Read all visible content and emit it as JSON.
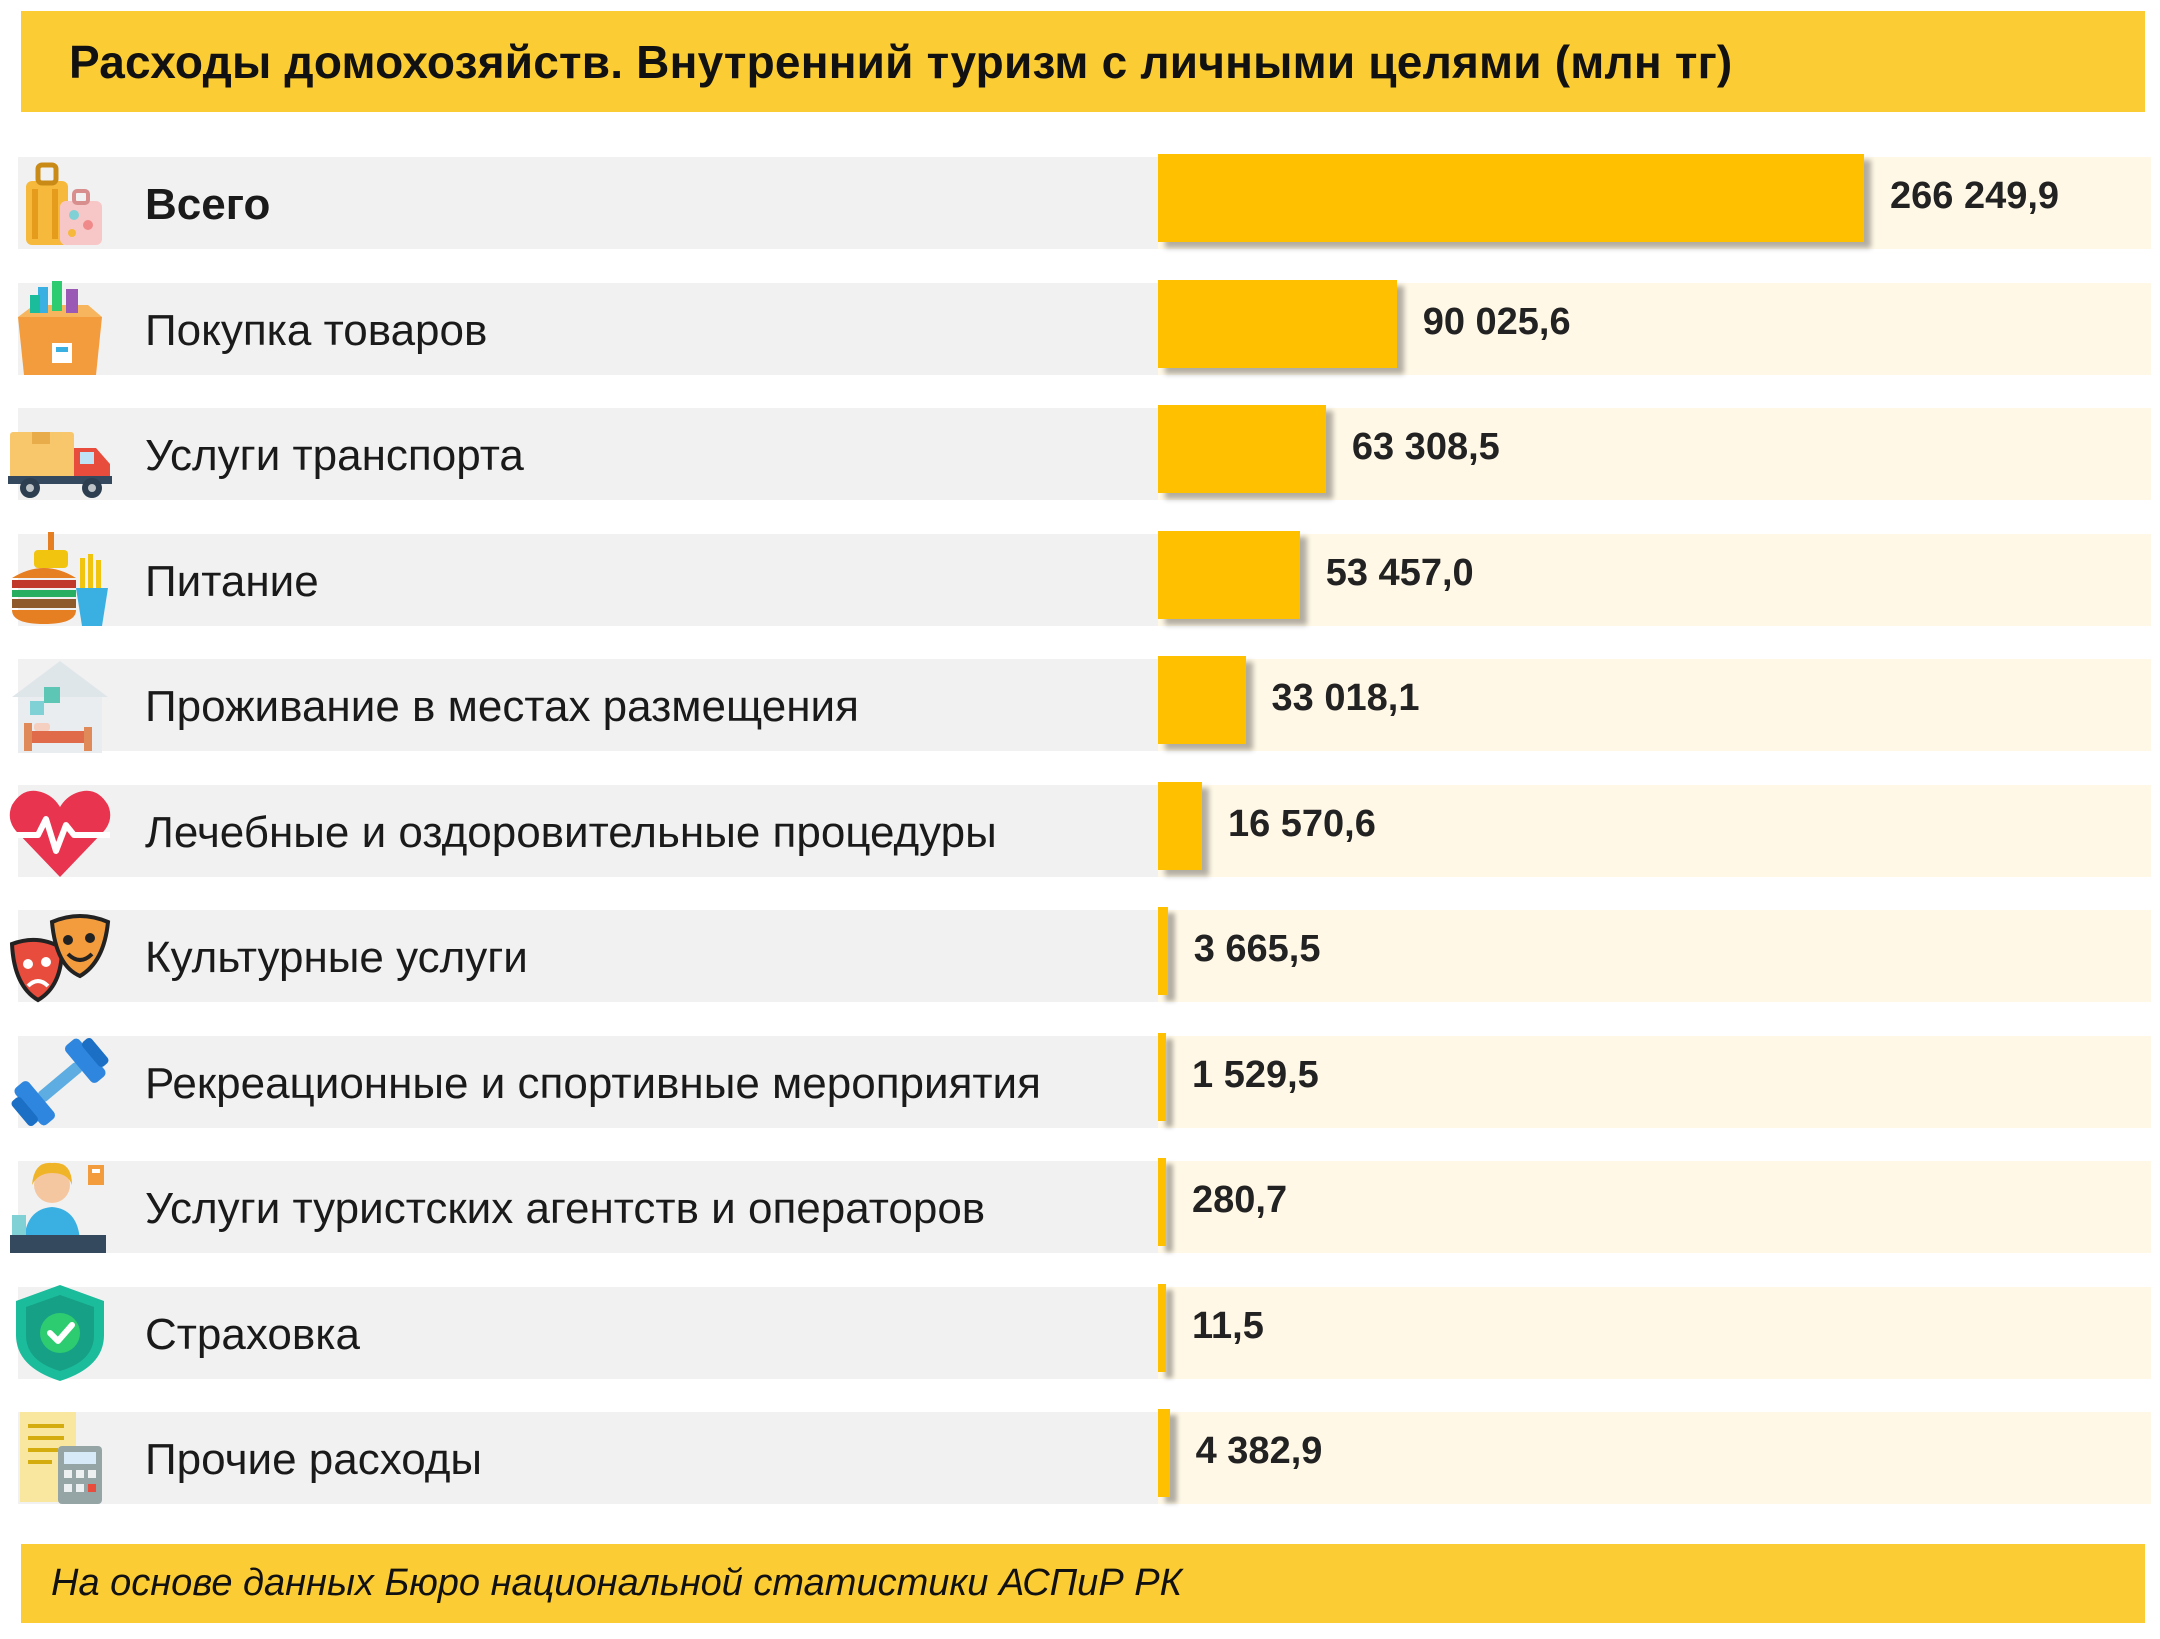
{
  "header": {
    "title": "Расходы домохозяйств. Внутренний туризм с личными целями  (млн тг)"
  },
  "footer": {
    "source": "На основе  данных Бюро национальной статистики  АСПиР РК"
  },
  "colors": {
    "band": "#fbcc33",
    "bar": "#ffc000",
    "label_background": "#f1f1f1",
    "value_background": "#fff8e7"
  },
  "chart_data": {
    "type": "bar",
    "orientation": "horizontal",
    "title": "Расходы домохозяйств. Внутренний туризм с личными целями  (млн тг)",
    "unit": "млн тг",
    "categories": [
      "Всего",
      "Покупка товаров",
      "Услуги транспорта",
      "Питание",
      "Проживание в местах размещения",
      "Лечебные и оздоровительные процедуры",
      "Культурные услуги",
      "Рекреационные и спортивные мероприятия",
      "Услуги туристских агентств и операторов",
      "Страховка",
      "Прочие расходы"
    ],
    "values": [
      266249.9,
      90025.6,
      63308.5,
      53457.0,
      33018.1,
      16570.6,
      3665.5,
      1529.5,
      280.7,
      11.5,
      4382.9
    ],
    "value_labels": [
      "266 249,9",
      "90 025,6",
      "63 308,5",
      "53 457,0",
      "33 018,1",
      "16 570,6",
      "3 665,5",
      "1 529,5",
      "280,7",
      "11,5",
      "4 382,9"
    ],
    "icons": [
      "luggage-icon",
      "shopping-box-icon",
      "delivery-truck-icon",
      "fast-food-icon",
      "hotel-bed-icon",
      "heart-pulse-icon",
      "theater-masks-icon",
      "dumbbell-icon",
      "travel-agent-icon",
      "insurance-shield-icon",
      "receipt-calculator-icon"
    ],
    "grid": false,
    "legend": "none"
  }
}
